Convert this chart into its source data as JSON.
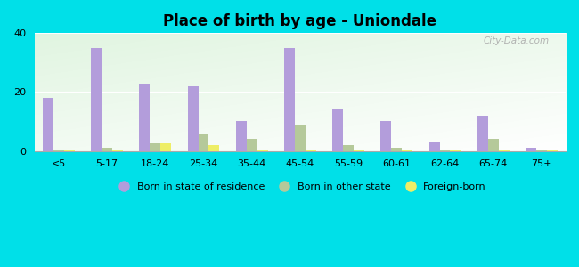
{
  "title": "Place of birth by age - Uniondale",
  "categories": [
    "<5",
    "5-17",
    "18-24",
    "25-34",
    "35-44",
    "45-54",
    "55-59",
    "60-61",
    "62-64",
    "65-74",
    "75+"
  ],
  "born_in_state": [
    18,
    35,
    23,
    22,
    10,
    35,
    14,
    10,
    3,
    12,
    1
  ],
  "born_other_state": [
    0.5,
    1,
    2.5,
    6,
    4,
    9,
    2,
    1,
    0.5,
    4,
    0.5
  ],
  "foreign_born": [
    0.5,
    0.5,
    2.5,
    2,
    0.5,
    0.5,
    0.5,
    0.5,
    0.5,
    0.5,
    0.5
  ],
  "color_state": "#b39ddb",
  "color_other": "#b5c99a",
  "color_foreign": "#eeee66",
  "ylim": [
    0,
    40
  ],
  "yticks": [
    0,
    20,
    40
  ],
  "fig_background": "#00e0e8",
  "watermark": "City-Data.com",
  "bg_color_topleft": "#d0ede0",
  "bg_color_bottomleft": "#a8dfc0",
  "bg_color_topright": "#f0f8f4",
  "bg_color_bottomright": "#e0f5e8"
}
